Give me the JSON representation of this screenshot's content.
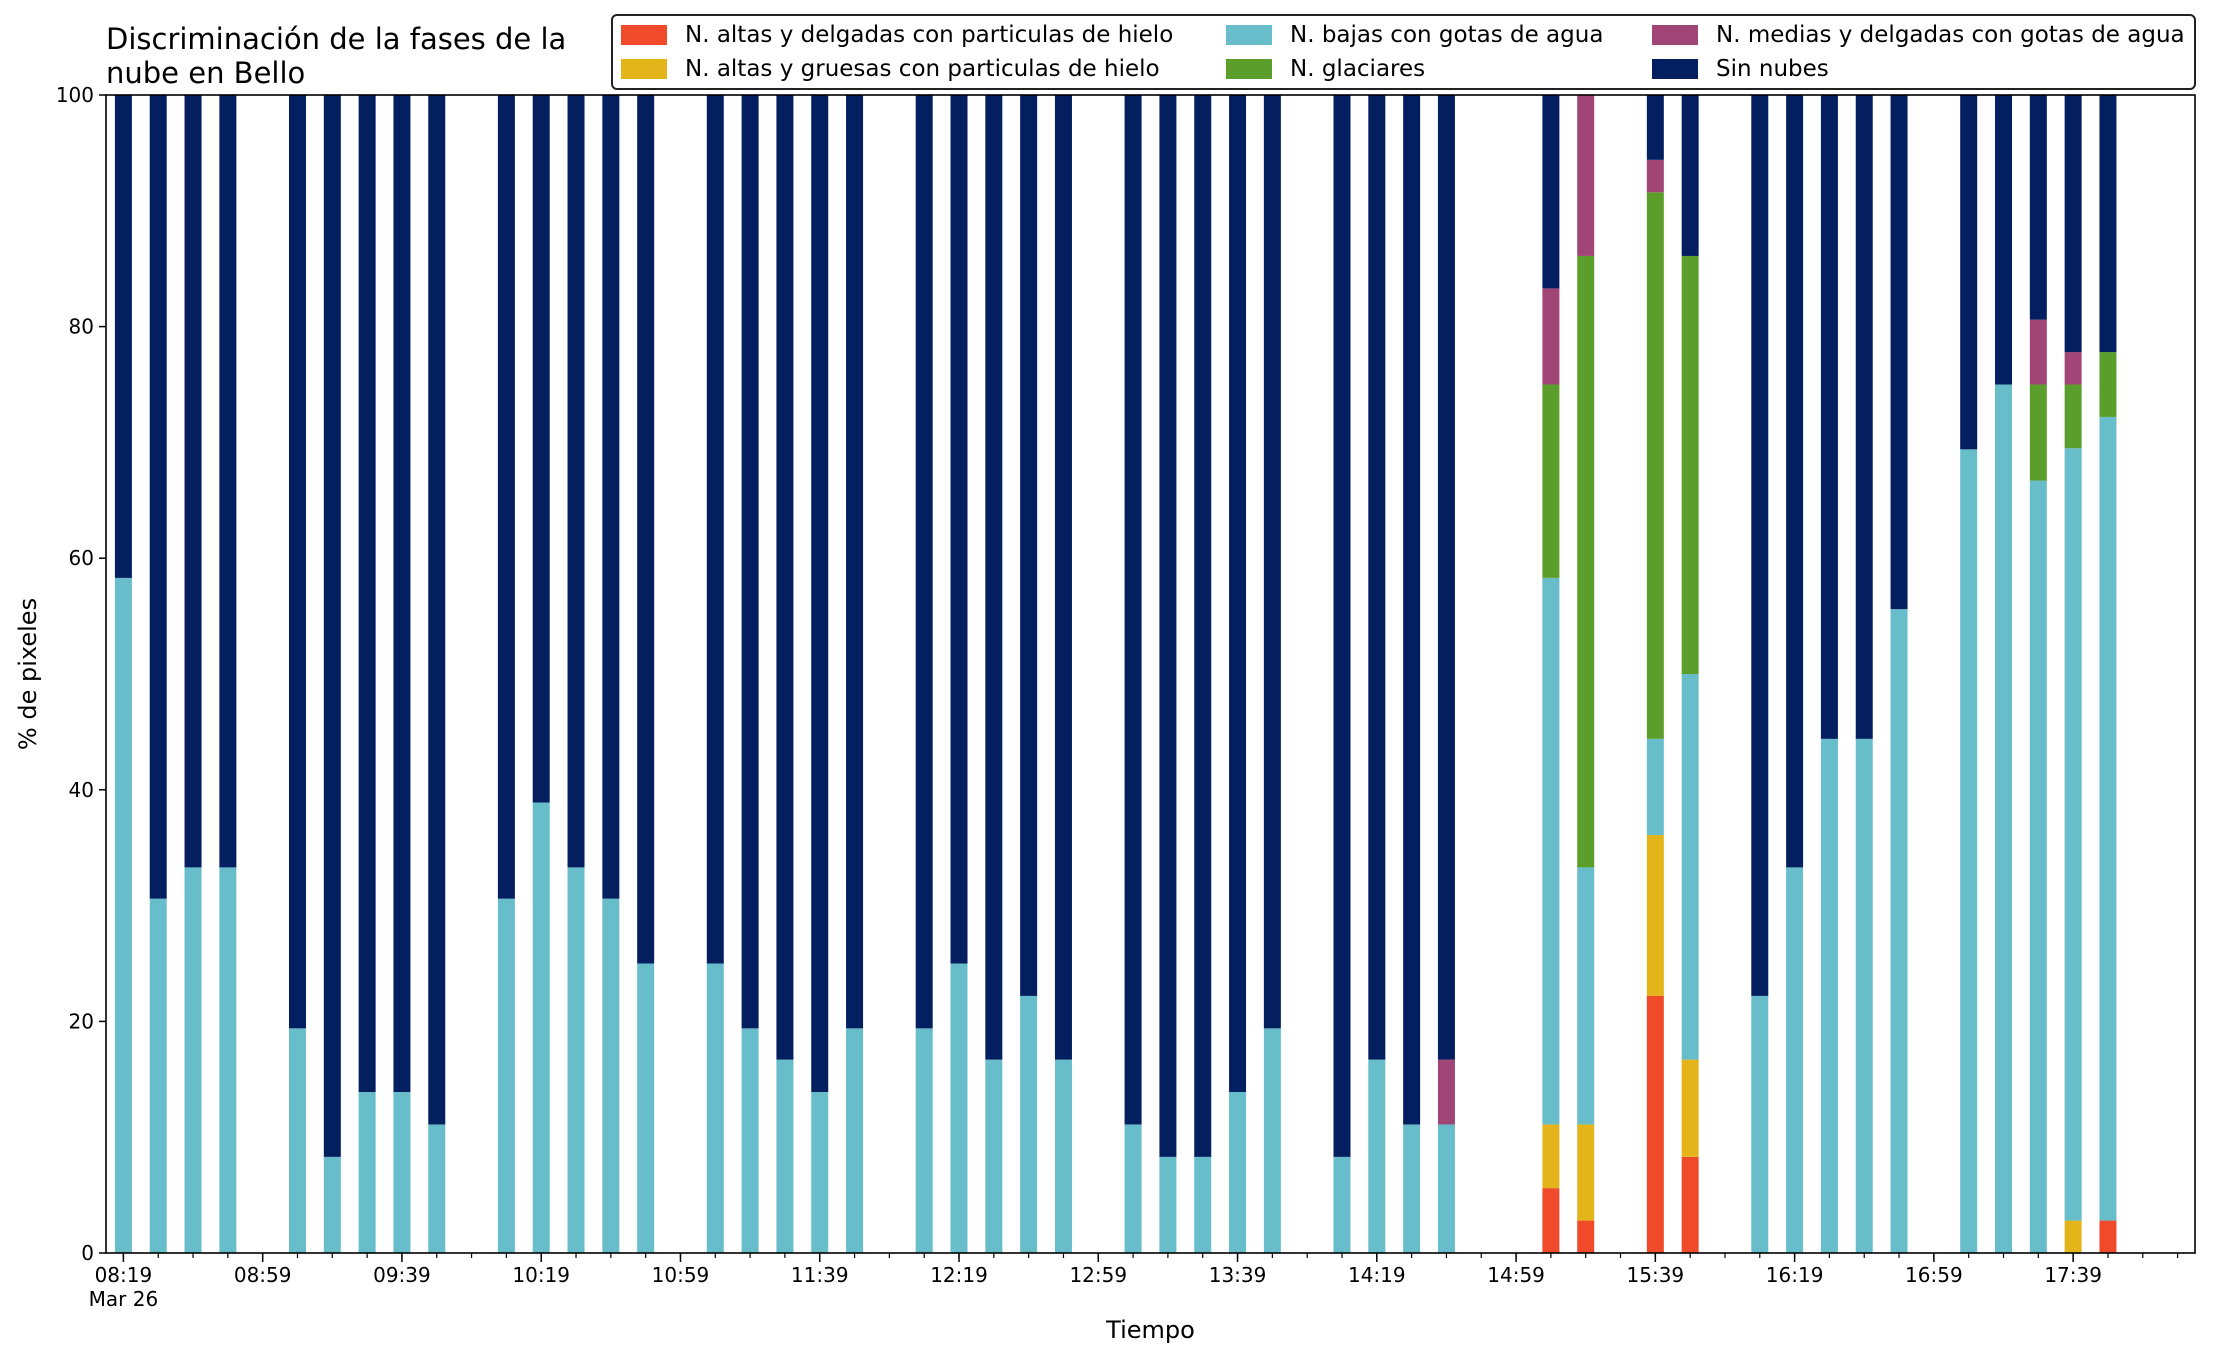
{
  "chart_data": {
    "type": "bar",
    "stacked": true,
    "title": "Discriminación de la fases de la nube en Bello",
    "title_lines": [
      "Discriminación de la fases de la",
      "nube en Bello"
    ],
    "xlabel": "Tiempo",
    "ylabel": "% de pixeles",
    "ylim": [
      0,
      100
    ],
    "yticks": [
      0,
      20,
      40,
      60,
      80,
      100
    ],
    "xlim": [
      "08:14",
      "18:14"
    ],
    "xtick_labels": [
      "08:19",
      "08:59",
      "09:39",
      "10:19",
      "10:59",
      "11:39",
      "12:19",
      "12:59",
      "13:39",
      "14:19",
      "14:59",
      "15:39",
      "16:19",
      "16:59",
      "17:39"
    ],
    "x_date_label": "Mar 26",
    "grid": false,
    "legend_position": "top-right",
    "categories": [
      "08:19",
      "08:29",
      "08:39",
      "08:49",
      "09:09",
      "09:19",
      "09:29",
      "09:39",
      "09:49",
      "10:09",
      "10:19",
      "10:29",
      "10:39",
      "10:49",
      "11:09",
      "11:19",
      "11:29",
      "11:39",
      "11:49",
      "12:09",
      "12:19",
      "12:29",
      "12:39",
      "12:49",
      "13:09",
      "13:19",
      "13:29",
      "13:39",
      "13:49",
      "14:09",
      "14:19",
      "14:29",
      "14:39",
      "15:09",
      "15:19",
      "15:39",
      "15:49",
      "16:09",
      "16:19",
      "16:29",
      "16:39",
      "16:49",
      "17:09",
      "17:19",
      "17:29",
      "17:39",
      "17:49"
    ],
    "series": [
      {
        "name": "N. altas y delgadas con particulas de hielo",
        "color": "#ef4b2a",
        "values": [
          0,
          0,
          0,
          0,
          0,
          0,
          0,
          0,
          0,
          0,
          0,
          0,
          0,
          0,
          0,
          0,
          0,
          0,
          0,
          0,
          0,
          0,
          0,
          0,
          0,
          0,
          0,
          0,
          0,
          0,
          0,
          0,
          0,
          5.6,
          2.8,
          22.2,
          8.3,
          0,
          0,
          0,
          0,
          0,
          0,
          0,
          0,
          0,
          2.8
        ]
      },
      {
        "name": "N. altas y gruesas con particulas de hielo",
        "color": "#e3b51a",
        "values": [
          0,
          0,
          0,
          0,
          0,
          0,
          0,
          0,
          0,
          0,
          0,
          0,
          0,
          0,
          0,
          0,
          0,
          0,
          0,
          0,
          0,
          0,
          0,
          0,
          0,
          0,
          0,
          0,
          0,
          0,
          0,
          0,
          0,
          5.5,
          8.3,
          13.9,
          8.4,
          0,
          0,
          0,
          0,
          0,
          0,
          0,
          0,
          2.8,
          0
        ]
      },
      {
        "name": "N. bajas con gotas de agua",
        "color": "#67bdca",
        "values": [
          58.3,
          30.6,
          33.3,
          33.3,
          19.4,
          8.3,
          13.9,
          13.9,
          11.1,
          30.6,
          38.9,
          33.3,
          30.6,
          25.0,
          25.0,
          19.4,
          16.7,
          13.9,
          19.4,
          19.4,
          25.0,
          16.7,
          22.2,
          16.7,
          11.1,
          8.3,
          8.3,
          13.9,
          19.4,
          8.3,
          16.7,
          11.1,
          11.1,
          47.2,
          22.2,
          8.3,
          33.3,
          22.2,
          33.3,
          44.4,
          44.4,
          55.6,
          69.4,
          75.0,
          66.7,
          66.7,
          69.4
        ]
      },
      {
        "name": "N. glaciares",
        "color": "#5c9e2c",
        "values": [
          0,
          0,
          0,
          0,
          0,
          0,
          0,
          0,
          0,
          0,
          0,
          0,
          0,
          0,
          0,
          0,
          0,
          0,
          0,
          0,
          0,
          0,
          0,
          0,
          0,
          0,
          0,
          0,
          0,
          0,
          0,
          0,
          0,
          16.7,
          52.8,
          47.2,
          36.1,
          0,
          0,
          0,
          0,
          0,
          0,
          0,
          8.3,
          5.5,
          5.6
        ]
      },
      {
        "name": "N. medias y delgadas con gotas de agua",
        "color": "#a14577",
        "values": [
          0,
          0,
          0,
          0,
          0,
          0,
          0,
          0,
          0,
          0,
          0,
          0,
          0,
          0,
          0,
          0,
          0,
          0,
          0,
          0,
          0,
          0,
          0,
          0,
          0,
          0,
          0,
          0,
          0,
          0,
          0,
          0,
          5.6,
          8.3,
          13.9,
          2.8,
          0,
          0,
          0,
          0,
          0,
          0,
          0,
          0,
          5.6,
          2.8,
          0
        ]
      },
      {
        "name": "Sin nubes",
        "color": "#041f60",
        "values": [
          41.7,
          69.4,
          66.7,
          66.7,
          80.6,
          91.7,
          86.1,
          86.1,
          88.9,
          69.4,
          61.1,
          66.7,
          69.4,
          75.0,
          75.0,
          80.6,
          83.3,
          86.1,
          80.6,
          80.6,
          75.0,
          83.3,
          77.8,
          83.3,
          88.9,
          91.7,
          91.7,
          86.1,
          80.6,
          91.7,
          83.3,
          88.9,
          83.3,
          16.7,
          0,
          5.6,
          13.9,
          77.8,
          66.7,
          55.6,
          55.6,
          44.4,
          30.6,
          25.0,
          19.4,
          22.2,
          22.2
        ]
      }
    ],
    "legend_order": [
      0,
      1,
      2,
      3,
      4,
      5
    ]
  }
}
